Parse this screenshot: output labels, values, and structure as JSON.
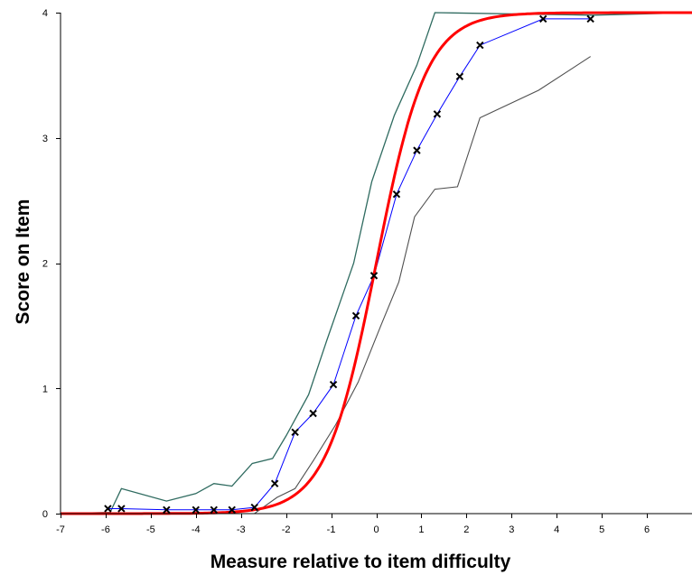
{
  "chart_data": {
    "type": "line",
    "title": "",
    "xlabel": "Measure relative to item difficulty",
    "ylabel": "Score on Item",
    "xlim": [
      -7,
      7
    ],
    "ylim": [
      0,
      4
    ],
    "x_ticks": [
      -7,
      -6,
      -5,
      -4,
      -3,
      -2,
      -1,
      0,
      1,
      2,
      3,
      4,
      5,
      6
    ],
    "y_ticks": [
      0,
      1,
      2,
      3,
      4
    ],
    "grid": false,
    "legend": "none",
    "colors": {
      "expected_curve": "#ff0000",
      "empirical_line": "#0000ff",
      "upper_band": "#2f6b60",
      "lower_band": "#505050",
      "markers": "#000000"
    },
    "series": [
      {
        "kind": "upper-band",
        "points": [
          {
            "x": -7,
            "y": 0.0
          },
          {
            "x": -5.9,
            "y": 0.01
          },
          {
            "x": -5.65,
            "y": 0.2
          },
          {
            "x": -4.65,
            "y": 0.1
          },
          {
            "x": -4.0,
            "y": 0.16
          },
          {
            "x": -3.6,
            "y": 0.24
          },
          {
            "x": -3.2,
            "y": 0.22
          },
          {
            "x": -2.75,
            "y": 0.4
          },
          {
            "x": -2.3,
            "y": 0.44
          },
          {
            "x": -2.0,
            "y": 0.62
          },
          {
            "x": -1.5,
            "y": 0.95
          },
          {
            "x": -1.1,
            "y": 1.38
          },
          {
            "x": -0.5,
            "y": 2.0
          },
          {
            "x": -0.1,
            "y": 2.65
          },
          {
            "x": 0.4,
            "y": 3.18
          },
          {
            "x": 0.9,
            "y": 3.58
          },
          {
            "x": 1.3,
            "y": 4.0
          },
          {
            "x": 4.8,
            "y": 3.98
          },
          {
            "x": 7,
            "y": 4.0
          }
        ]
      },
      {
        "kind": "lower-band",
        "points": [
          {
            "x": -7,
            "y": 0.0
          },
          {
            "x": -2.7,
            "y": 0.0
          },
          {
            "x": -2.2,
            "y": 0.13
          },
          {
            "x": -1.8,
            "y": 0.2
          },
          {
            "x": -1.4,
            "y": 0.42
          },
          {
            "x": -0.9,
            "y": 0.71
          },
          {
            "x": -0.4,
            "y": 1.05
          },
          {
            "x": 0.1,
            "y": 1.5
          },
          {
            "x": 0.5,
            "y": 1.85
          },
          {
            "x": 0.85,
            "y": 2.37
          },
          {
            "x": 1.3,
            "y": 2.59
          },
          {
            "x": 1.8,
            "y": 2.61
          },
          {
            "x": 2.3,
            "y": 3.16
          },
          {
            "x": 3.6,
            "y": 3.38
          },
          {
            "x": 4.75,
            "y": 3.65
          }
        ]
      },
      {
        "kind": "expected-curve",
        "function": "4 / (1 + exp(-1.8 * x))",
        "x_range": [
          -7,
          7
        ]
      },
      {
        "kind": "empirical-points",
        "points": [
          {
            "x": -5.95,
            "y": 0.04
          },
          {
            "x": -5.65,
            "y": 0.04
          },
          {
            "x": -4.65,
            "y": 0.03
          },
          {
            "x": -4.0,
            "y": 0.03
          },
          {
            "x": -3.6,
            "y": 0.03
          },
          {
            "x": -3.2,
            "y": 0.03
          },
          {
            "x": -2.7,
            "y": 0.05
          },
          {
            "x": -2.25,
            "y": 0.24
          },
          {
            "x": -1.8,
            "y": 0.65
          },
          {
            "x": -1.4,
            "y": 0.8
          },
          {
            "x": -0.95,
            "y": 1.03
          },
          {
            "x": -0.45,
            "y": 1.58
          },
          {
            "x": -0.05,
            "y": 1.9
          },
          {
            "x": 0.45,
            "y": 2.55
          },
          {
            "x": 0.9,
            "y": 2.9
          },
          {
            "x": 1.35,
            "y": 3.19
          },
          {
            "x": 1.85,
            "y": 3.49
          },
          {
            "x": 2.3,
            "y": 3.74
          },
          {
            "x": 3.7,
            "y": 3.95
          },
          {
            "x": 4.75,
            "y": 3.95
          }
        ]
      }
    ]
  }
}
